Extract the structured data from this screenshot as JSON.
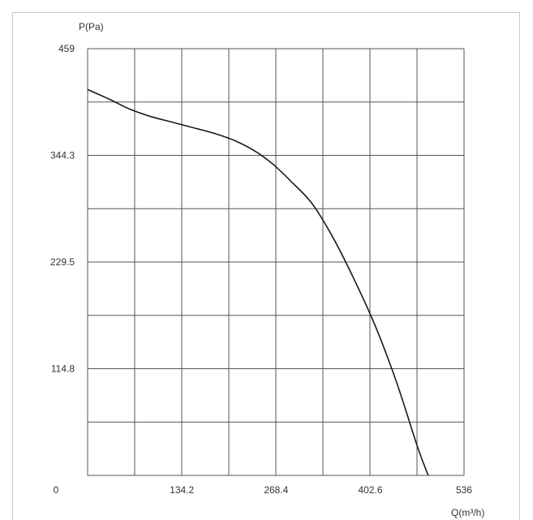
{
  "chart_data": {
    "type": "line",
    "title": "",
    "xlabel": "Q(m³/h)",
    "ylabel": "P(Pa)",
    "xlim": [
      0,
      536
    ],
    "ylim": [
      0,
      459
    ],
    "x_tick_labels": [
      "0",
      "134.2",
      "268.4",
      "402.6",
      "536"
    ],
    "x_ticks": [
      0,
      134.2,
      268.4,
      402.6,
      536
    ],
    "y_tick_labels": [
      "114.8",
      "229.5",
      "344.3",
      "459"
    ],
    "y_ticks": [
      114.8,
      229.5,
      344.3,
      459
    ],
    "grid": true,
    "grid_x_divisions": 8,
    "grid_y_divisions": 8,
    "colors": {
      "line": "#1a1a1a",
      "grid": "#555555",
      "text": "#333333"
    },
    "series": [
      {
        "x": [
          0,
          30,
          60,
          90,
          120,
          150,
          180,
          210,
          240,
          265,
          290,
          320,
          350,
          380,
          410,
          440,
          470,
          485
        ],
        "y": [
          415,
          405,
          394,
          386,
          380,
          374,
          368,
          360,
          348,
          334,
          316,
          292,
          255,
          210,
          160,
          100,
          30,
          0
        ]
      }
    ]
  }
}
